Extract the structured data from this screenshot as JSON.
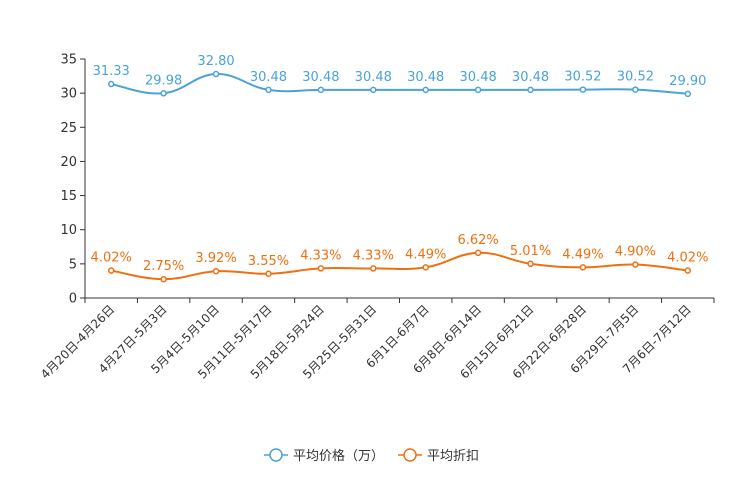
{
  "chart_data": {
    "type": "line",
    "title": "",
    "xlabel": "",
    "ylabel": "",
    "ylim": [
      0,
      35
    ],
    "yticks": [
      0,
      5,
      10,
      15,
      20,
      25,
      30,
      35
    ],
    "grid": false,
    "legend_position": "bottom-center",
    "categories": [
      "4月20日-4月26日",
      "4月27日-5月3日",
      "5月4日-5月10日",
      "5月11日-5月17日",
      "5月18日-5月24日",
      "5月25日-5月31日",
      "6月1日-6月7日",
      "6月8日-6月14日",
      "6月15日-6月21日",
      "6月22日-6月28日",
      "6月29日-7月5日",
      "7月6日-7月12日"
    ],
    "series": [
      {
        "name": "平均价格（万）",
        "color": "#4aa3d8",
        "values": [
          31.33,
          29.98,
          32.8,
          30.48,
          30.48,
          30.48,
          30.48,
          30.48,
          30.48,
          30.52,
          30.52,
          29.9
        ],
        "labels": [
          "31.33",
          "29.98",
          "32.80",
          "30.48",
          "30.48",
          "30.48",
          "30.48",
          "30.48",
          "30.48",
          "30.52",
          "30.52",
          "29.90"
        ]
      },
      {
        "name": "平均折扣",
        "color": "#f07010",
        "values": [
          4.02,
          2.75,
          3.92,
          3.55,
          4.33,
          4.33,
          4.49,
          6.62,
          5.01,
          4.49,
          4.9,
          4.02
        ],
        "labels": [
          "4.02%",
          "2.75%",
          "3.92%",
          "3.55%",
          "4.33%",
          "4.33%",
          "4.49%",
          "6.62%",
          "5.01%",
          "4.49%",
          "4.90%",
          "4.02%"
        ]
      }
    ]
  }
}
